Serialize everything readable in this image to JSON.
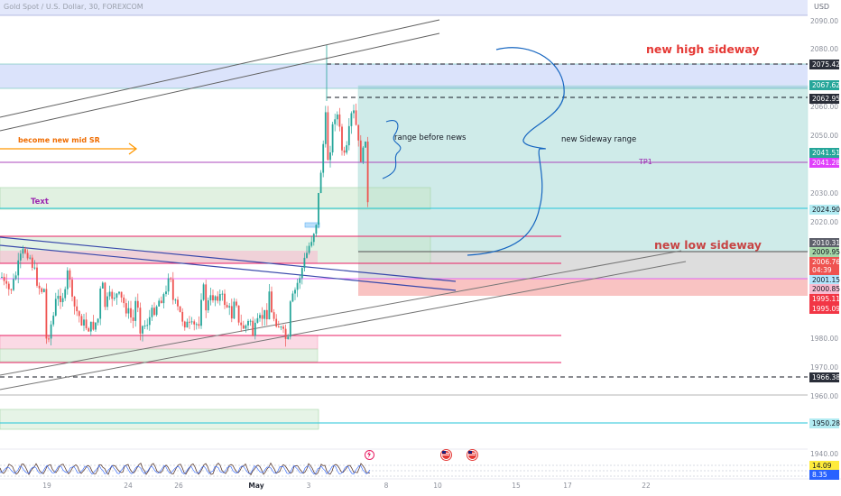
{
  "header": {
    "title": "Gold Spot / U.S. Dollar, 30, FOREXCOM",
    "currency": "USD"
  },
  "price_axis": {
    "ticks": [
      "2090.00",
      "2080.00",
      "2060.00",
      "2050.00",
      "2030.00",
      "2020.00",
      "1980.00",
      "1970.00",
      "1960.00",
      "1940.00"
    ],
    "tags": [
      {
        "text": "2075.42",
        "bg": "#2a2e39",
        "fg": "#ffffff"
      },
      {
        "text": "2067.62",
        "bg": "#26a69a",
        "fg": "#ffffff"
      },
      {
        "text": "2062.95",
        "bg": "#2a2e39",
        "fg": "#ffffff"
      },
      {
        "text": "2041.51",
        "bg": "#26a69a",
        "fg": "#ffffff"
      },
      {
        "text": "2041.28",
        "bg": "#e040fb",
        "fg": "#ffffff"
      },
      {
        "text": "2024.90",
        "bg": "#b2ebf2",
        "fg": "#131722"
      },
      {
        "text": "2010.31",
        "bg": "#5d606b",
        "fg": "#ffffff"
      },
      {
        "text": "2009.95",
        "bg": "#a5d6a7",
        "fg": "#131722"
      },
      {
        "text": "2006.76",
        "bg": "#ef5350",
        "fg": "#ffffff"
      },
      {
        "text": "04:39",
        "bg": "#ef5350",
        "fg": "#ffffff"
      },
      {
        "text": "2001.15",
        "bg": "#b3e5fc",
        "fg": "#131722"
      },
      {
        "text": "2000.85",
        "bg": "#f8bbd0",
        "fg": "#131722"
      },
      {
        "text": "1995.11",
        "bg": "#f23645",
        "fg": "#ffffff"
      },
      {
        "text": "1995.09",
        "bg": "#f23645",
        "fg": "#ffffff"
      },
      {
        "text": "1966.38",
        "bg": "#2a2e39",
        "fg": "#ffffff"
      },
      {
        "text": "1950.28",
        "bg": "#b2ebf2",
        "fg": "#131722"
      }
    ],
    "osc_tags": [
      {
        "text": "14.09",
        "bg": "#ffeb3b",
        "fg": "#131722"
      },
      {
        "text": "8.35",
        "bg": "#2962ff",
        "fg": "#ffffff"
      }
    ]
  },
  "time_axis": {
    "labels": [
      "19",
      "24",
      "26",
      "May",
      "3",
      "8",
      "10",
      "15",
      "17",
      "22"
    ]
  },
  "annotations": {
    "new_high": "new high sideway",
    "new_low": "new low sideway",
    "range_before_news": "range before news",
    "new_sideway_range": "new Sideway range",
    "mid_sr": "become new mid SR",
    "tp1": "TP1",
    "text": "Text"
  },
  "colors": {
    "bull": "#26a69a",
    "bear": "#ef5350",
    "magenta": "#e91e63",
    "blue": "#1565c0",
    "orange": "#ff9800",
    "purple": "#9c27b0"
  }
}
